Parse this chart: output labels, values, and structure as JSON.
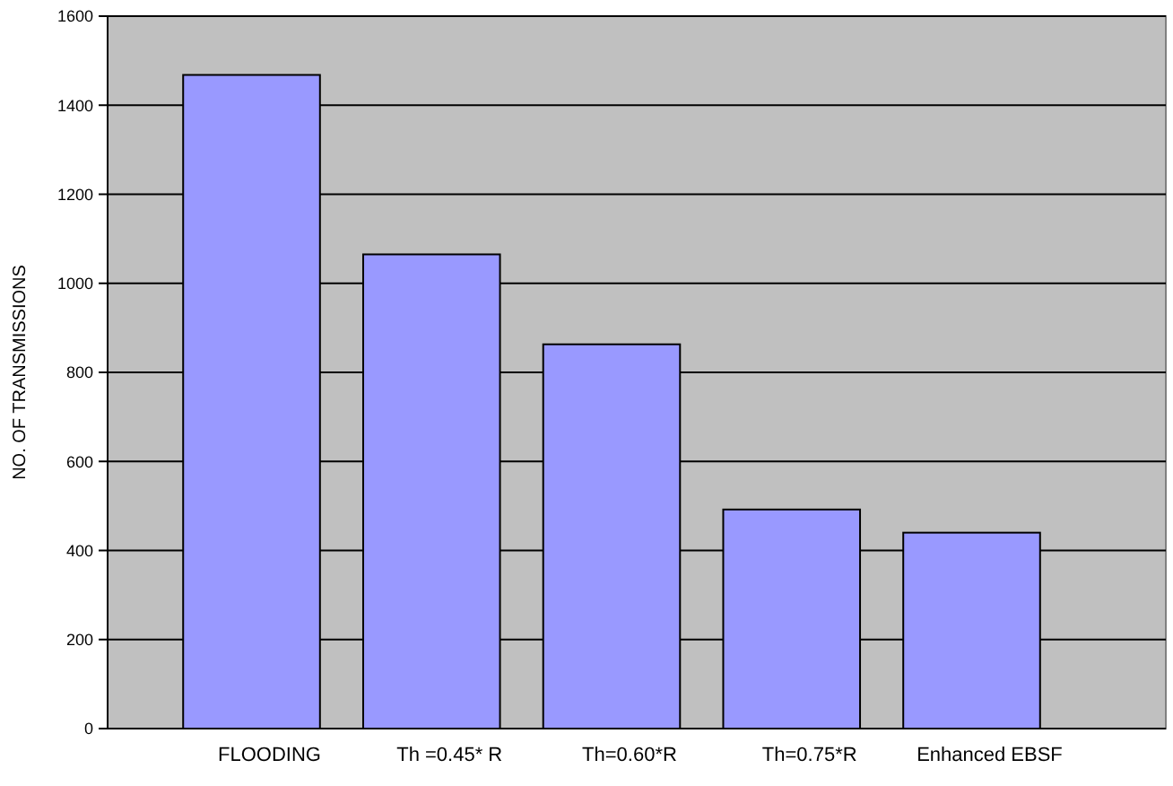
{
  "chart_data": {
    "type": "bar",
    "ylabel": "NO. OF TRANSMISSIONS",
    "categories": [
      "FLOODING",
      "Th =0.45* R",
      "Th=0.60*R",
      "Th=0.75*R",
      "Enhanced EBSF"
    ],
    "values": [
      1468,
      1065,
      863,
      492,
      440
    ],
    "color": "#9999ff",
    "ylim": [
      0,
      1600
    ],
    "yticks": [
      0,
      200,
      400,
      600,
      800,
      1000,
      1200,
      1400,
      1600
    ],
    "grid": "y"
  }
}
